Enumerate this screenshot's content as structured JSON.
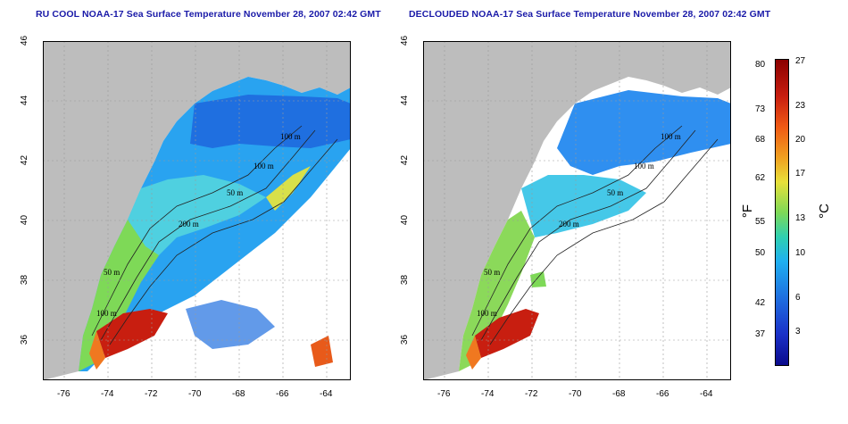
{
  "panels": [
    {
      "title": "RU COOL NOAA-17 Sea Surface Temperature November 28, 2007 02:42 GMT",
      "contour_labels": [
        "100 m",
        "100 m",
        "50 m",
        "200 m",
        "50 m",
        "100 m"
      ]
    },
    {
      "title": "DECLOUDED NOAA-17 Sea Surface Temperature November 28, 2007 02:42 GMT",
      "contour_labels": [
        "100 m",
        "100 m",
        "50 m",
        "200 m",
        "50 m",
        "100 m"
      ]
    }
  ],
  "axes": {
    "lon_ticks": [
      "-76",
      "-74",
      "-72",
      "-70",
      "-68",
      "-66",
      "-64"
    ],
    "lat_ticks": [
      "46",
      "44",
      "42",
      "40",
      "38",
      "36"
    ]
  },
  "colorbar": {
    "fahrenheit_label": "°F",
    "celsius_label": "°C",
    "fahrenheit_ticks": [
      "80",
      "73",
      "68",
      "62",
      "55",
      "50",
      "42",
      "37"
    ],
    "celsius_ticks": [
      "27",
      "23",
      "20",
      "17",
      "13",
      "10",
      "6",
      "3"
    ]
  },
  "colors": {
    "land": "#bdbdbd",
    "cloud": "#ffffff",
    "title": "#1a1aa8",
    "grid": "#9a9a9a"
  }
}
